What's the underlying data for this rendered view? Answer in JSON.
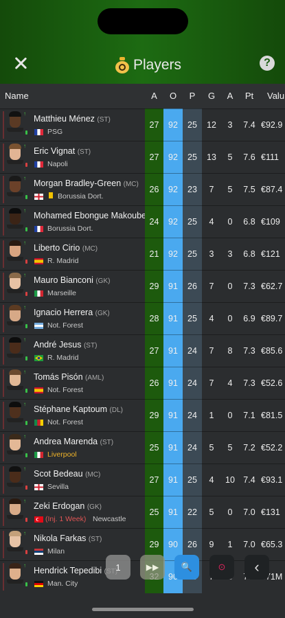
{
  "header": {
    "title": "Players",
    "close_label": "×",
    "help_label": "?"
  },
  "columns": {
    "name": "Name",
    "age": "A",
    "ovr": "O",
    "pot": "P",
    "goals": "G",
    "assists": "A",
    "rating": "Pt",
    "value": "Valu"
  },
  "toolbar": {
    "btn1": "1",
    "btn2": "▶▶",
    "btn3": "🔍",
    "btn4": "⊙",
    "btn5": "‹"
  },
  "players": [
    {
      "name": "Matthieu Ménez",
      "pos": "(ST)",
      "club": "PSG",
      "flag": "france",
      "age": "27",
      "ovr": "92",
      "pot": "25",
      "g": "12",
      "a": "3",
      "pt": "7.4",
      "val": "€92.9"
    },
    {
      "name": "Eric Vignat",
      "pos": "(ST)",
      "club": "Napoli",
      "flag": "france",
      "age": "27",
      "ovr": "92",
      "pot": "25",
      "g": "13",
      "a": "5",
      "pt": "7.6",
      "val": "€111"
    },
    {
      "name": "Morgan Bradley-Green",
      "pos": "(MC)",
      "club": "Borussia Dort.",
      "flag": "england",
      "age": "26",
      "ovr": "92",
      "pot": "23",
      "g": "7",
      "a": "5",
      "pt": "7.5",
      "val": "€87.4"
    },
    {
      "name": "Mohamed Ebongue Makoube",
      "pos": "",
      "club": "Borussia Dort.",
      "flag": "france",
      "age": "24",
      "ovr": "92",
      "pot": "25",
      "g": "4",
      "a": "0",
      "pt": "6.8",
      "val": "€109"
    },
    {
      "name": "Liberto Cirio",
      "pos": "(MC)",
      "club": "R. Madrid",
      "flag": "spain",
      "age": "21",
      "ovr": "92",
      "pot": "25",
      "g": "3",
      "a": "3",
      "pt": "6.8",
      "val": "€121"
    },
    {
      "name": "Mauro Bianconi",
      "pos": "(GK)",
      "club": "Marseille",
      "flag": "italy",
      "age": "29",
      "ovr": "91",
      "pot": "26",
      "g": "7",
      "a": "0",
      "pt": "7.3",
      "val": "€62.7"
    },
    {
      "name": "Ignacio Herrera",
      "pos": "(GK)",
      "club": "Not. Forest",
      "flag": "argentina",
      "age": "28",
      "ovr": "91",
      "pot": "25",
      "g": "4",
      "a": "0",
      "pt": "6.9",
      "val": "€89.7"
    },
    {
      "name": "André Jesus",
      "pos": "(ST)",
      "club": "R. Madrid",
      "flag": "brazil",
      "age": "27",
      "ovr": "91",
      "pot": "24",
      "g": "7",
      "a": "8",
      "pt": "7.3",
      "val": "€85.6"
    },
    {
      "name": "Tomás Pisón",
      "pos": "(AML)",
      "club": "Not. Forest",
      "flag": "spain",
      "age": "26",
      "ovr": "91",
      "pot": "24",
      "g": "7",
      "a": "4",
      "pt": "7.3",
      "val": "€52.6"
    },
    {
      "name": "Stéphane Kaptoum",
      "pos": "(DL)",
      "club": "Not. Forest",
      "flag": "cameroon",
      "age": "29",
      "ovr": "91",
      "pot": "24",
      "g": "1",
      "a": "0",
      "pt": "7.1",
      "val": "€81.5"
    },
    {
      "name": "Andrea Marenda",
      "pos": "(ST)",
      "club": "Liverpool",
      "flag": "italy",
      "age": "25",
      "ovr": "91",
      "pot": "24",
      "g": "5",
      "a": "5",
      "pt": "7.2",
      "val": "€52.2"
    },
    {
      "name": "Scot Bedeau",
      "pos": "(MC)",
      "club": "Sevilla",
      "flag": "england",
      "age": "27",
      "ovr": "91",
      "pot": "25",
      "g": "4",
      "a": "10",
      "pt": "7.4",
      "val": "€93.1"
    },
    {
      "name": "Zeki Erdogan",
      "pos": "(GK)",
      "injury": "(Inj. 1 Week)",
      "club2": "Newcastle",
      "flag": "turkey",
      "age": "25",
      "ovr": "91",
      "pot": "22",
      "g": "5",
      "a": "0",
      "pt": "7.0",
      "val": "€131"
    },
    {
      "name": "Nikola Farkas",
      "pos": "(ST)",
      "club": "Milan",
      "flag": "serbia",
      "age": "29",
      "ovr": "90",
      "pot": "26",
      "g": "9",
      "a": "1",
      "pt": "7.0",
      "val": "€65.3"
    },
    {
      "name": "Hendrick Tepedibi",
      "pos": "(ST)",
      "club": "Man. City",
      "flag": "germany",
      "age": "32",
      "ovr": "90",
      "pot": "25",
      "g": "7",
      "a": "3",
      "pt": "7.2",
      "val": "€71M"
    }
  ]
}
